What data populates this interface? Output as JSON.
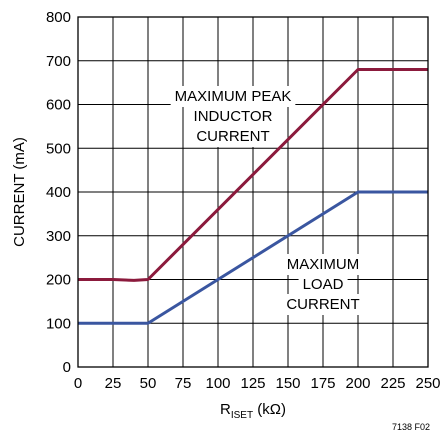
{
  "chart_data": {
    "type": "line",
    "x_ticks": [
      0,
      25,
      50,
      75,
      100,
      125,
      150,
      175,
      200,
      225,
      250
    ],
    "y_ticks": [
      0,
      100,
      200,
      300,
      400,
      500,
      600,
      700,
      800
    ],
    "xlim": [
      0,
      250
    ],
    "ylim": [
      0,
      800
    ],
    "grid": true,
    "xlabel_main": "R",
    "xlabel_sub": "ISET",
    "xlabel_unit": " (kΩ)",
    "ylabel": "CURRENT (mA)",
    "figure_id": "7138 F02",
    "series": [
      {
        "color": "#8b1a3c",
        "points": [
          [
            0,
            200
          ],
          [
            25,
            200
          ],
          [
            40,
            198
          ],
          [
            50,
            200
          ],
          [
            200,
            680
          ],
          [
            250,
            680
          ]
        ]
      },
      {
        "color": "#3a56a0",
        "points": [
          [
            0,
            100
          ],
          [
            50,
            100
          ],
          [
            200,
            400
          ],
          [
            250,
            400
          ]
        ]
      }
    ],
    "annotations": [
      {
        "lines": [
          "MAXIMUM PEAK",
          "INDUCTOR",
          "CURRENT"
        ]
      },
      {
        "lines": [
          "MAXIMUM",
          "LOAD",
          "CURRENT"
        ]
      }
    ]
  }
}
